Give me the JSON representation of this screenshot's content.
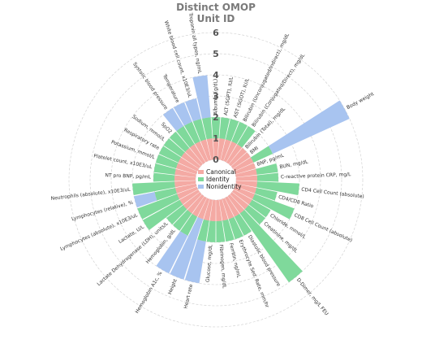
{
  "chart_data": {
    "type": "bar",
    "subtype": "polar-stacked",
    "title_lines": [
      "Distinct OMOP",
      "Unit ID"
    ],
    "rticks": [
      "0",
      "1",
      "2",
      "3",
      "4",
      "5",
      "6"
    ],
    "rlim": [
      0,
      6
    ],
    "grid": true,
    "legend_position": "center",
    "colors": {
      "Canonical": "#f4aaa4",
      "Identity": "#7fd99b",
      "Nonidentity": "#a8c4f0"
    },
    "series_names": [
      "Canonical",
      "Identity",
      "Nonidentity"
    ],
    "categories": [
      "Albumin (g/dL)",
      "ALT (SGPT), IU/L",
      "AST (SGOT), IU/L",
      "Bilirubin (Unconjugated/Indirect), mg/dL",
      "Bilirubin (Conjugated/Direct), mg/dL",
      "Bilirubin (Total), mg/dL",
      "BMI",
      "Body weight",
      "BNP, pg/mL",
      "BUN, mg/dL",
      "C-reactive protein CRP, mg/L",
      "CD4 Cell Count (absolute)",
      "CD4/CD8 Ratio",
      "CD8 Cell Count (absolute)",
      "Chloride, mmol/L",
      "Creatinine, mg/dL",
      "D-Dimer, mg/L FEU",
      "Diastolic blood pressure",
      "Erythrocyte Sed. Rate, mm/hr",
      "Ferritin, ng/mL",
      "Fibrinogen, mg/dL",
      "Glucose, mg/dL",
      "Heart rate",
      "Height",
      "Hemoglobin A1c, %",
      "Hemoglobin, g/dL",
      "Lactate Dehydrogenase (LDH), units/L",
      "Lactate, U/L",
      "Lymphocytes (absolute), x10E3/uL",
      "Lymphocytes (relative), %",
      "Neutrophils (absolute), x10E3/uL",
      "NT pro BNP, pg/mL",
      "Platelet count, x10E3/uL",
      "Potassium, mmol/L",
      "Respiratory rate",
      "Sodium, mmol/L",
      "SpO2",
      "Systolic blood pressure",
      "Temperature",
      "White blood cell count, x10E3/uL",
      "Troponin all types, ng/mL"
    ],
    "series": [
      {
        "name": "Canonical",
        "values": [
          1,
          1,
          1,
          1,
          1,
          1,
          1,
          1,
          1,
          1,
          1,
          1,
          1,
          1,
          1,
          1,
          1,
          1,
          1,
          1,
          1,
          1,
          1,
          1,
          1,
          1,
          1,
          1,
          1,
          1,
          1,
          1,
          1,
          1,
          1,
          1,
          1,
          1,
          1,
          1,
          1
        ]
      },
      {
        "name": "Identity",
        "values": [
          1,
          1,
          1,
          1,
          1,
          0,
          0,
          1,
          0,
          1,
          1,
          2,
          1,
          2,
          1,
          1,
          4,
          1,
          1,
          1,
          1,
          1,
          1,
          0,
          1,
          1,
          1,
          2,
          2,
          1,
          2,
          1,
          1,
          1,
          1,
          1,
          1,
          1,
          1,
          1,
          1
        ]
      },
      {
        "name": "Nonidentity",
        "values": [
          0,
          0,
          0,
          0,
          0,
          0,
          0,
          4,
          0,
          0,
          0,
          0,
          0,
          0,
          0,
          0,
          0,
          0,
          0,
          0,
          0,
          0,
          2,
          3,
          2,
          0,
          0,
          0,
          0,
          1,
          0,
          0,
          0,
          0,
          0,
          0,
          0,
          1,
          1,
          1,
          2
        ]
      }
    ]
  }
}
